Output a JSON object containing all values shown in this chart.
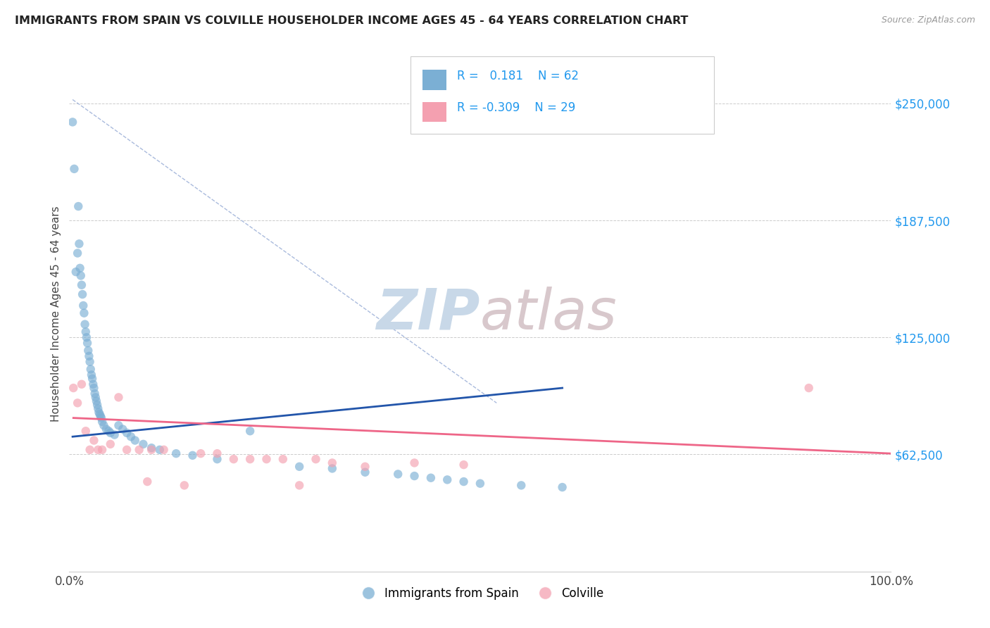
{
  "title": "IMMIGRANTS FROM SPAIN VS COLVILLE HOUSEHOLDER INCOME AGES 45 - 64 YEARS CORRELATION CHART",
  "source_text": "Source: ZipAtlas.com",
  "ylabel": "Householder Income Ages 45 - 64 years",
  "xlim": [
    0.0,
    100.0
  ],
  "ylim": [
    0,
    275000
  ],
  "yticks": [
    0,
    62500,
    125000,
    187500,
    250000
  ],
  "ytick_labels": [
    "",
    "$62,500",
    "$125,000",
    "$187,500",
    "$250,000"
  ],
  "xtick_labels": [
    "0.0%",
    "100.0%"
  ],
  "blue_color": "#7BAFD4",
  "pink_color": "#F4A0B0",
  "blue_line_color": "#2255AA",
  "pink_line_color": "#EE6688",
  "dashed_line_color": "#AABBDD",
  "title_color": "#222222",
  "axis_label_color": "#444444",
  "source_color": "#999999",
  "watermark_color_zip": "#C8D8E8",
  "watermark_color_atlas": "#D8C8CC",
  "ytick_color": "#2299EE",
  "blue_x": [
    0.4,
    0.6,
    0.8,
    1.0,
    1.1,
    1.2,
    1.3,
    1.4,
    1.5,
    1.6,
    1.7,
    1.8,
    1.9,
    2.0,
    2.1,
    2.2,
    2.3,
    2.4,
    2.5,
    2.6,
    2.7,
    2.8,
    2.9,
    3.0,
    3.1,
    3.2,
    3.3,
    3.4,
    3.5,
    3.6,
    3.7,
    3.8,
    3.9,
    4.0,
    4.2,
    4.5,
    4.8,
    5.0,
    5.5,
    6.0,
    6.5,
    7.0,
    7.5,
    8.0,
    9.0,
    10.0,
    11.0,
    13.0,
    15.0,
    18.0,
    22.0,
    28.0,
    32.0,
    36.0,
    40.0,
    42.0,
    44.0,
    46.0,
    48.0,
    50.0,
    55.0,
    60.0
  ],
  "blue_y": [
    240000,
    215000,
    160000,
    170000,
    195000,
    175000,
    162000,
    158000,
    153000,
    148000,
    142000,
    138000,
    132000,
    128000,
    125000,
    122000,
    118000,
    115000,
    112000,
    108000,
    105000,
    103000,
    100000,
    98000,
    95000,
    93000,
    91000,
    89000,
    87000,
    85000,
    84000,
    83000,
    82000,
    80000,
    78000,
    76000,
    75000,
    74000,
    73000,
    78000,
    76000,
    74000,
    72000,
    70000,
    68000,
    66000,
    65000,
    63000,
    62000,
    60000,
    75000,
    56000,
    55000,
    53000,
    52000,
    51000,
    50000,
    49000,
    48000,
    47000,
    46000,
    45000
  ],
  "pink_x": [
    0.5,
    1.0,
    1.5,
    2.0,
    2.5,
    3.0,
    3.5,
    4.0,
    5.0,
    6.0,
    7.0,
    8.5,
    9.5,
    10.0,
    11.5,
    14.0,
    16.0,
    18.0,
    20.0,
    22.0,
    24.0,
    26.0,
    28.0,
    30.0,
    32.0,
    36.0,
    42.0,
    48.0,
    90.0
  ],
  "pink_y": [
    98000,
    90000,
    100000,
    75000,
    65000,
    70000,
    65000,
    65000,
    68000,
    93000,
    65000,
    65000,
    48000,
    65000,
    65000,
    46000,
    63000,
    63000,
    60000,
    60000,
    60000,
    60000,
    46000,
    60000,
    58000,
    56000,
    58000,
    57000,
    98000
  ],
  "blue_trend_x": [
    0.4,
    60.0
  ],
  "blue_trend_y": [
    72000,
    98000
  ],
  "pink_trend_x": [
    0.5,
    100.0
  ],
  "pink_trend_y": [
    82000,
    63000
  ],
  "diag_line_x": [
    0.4,
    52.0
  ],
  "diag_line_y": [
    252000,
    90000
  ]
}
